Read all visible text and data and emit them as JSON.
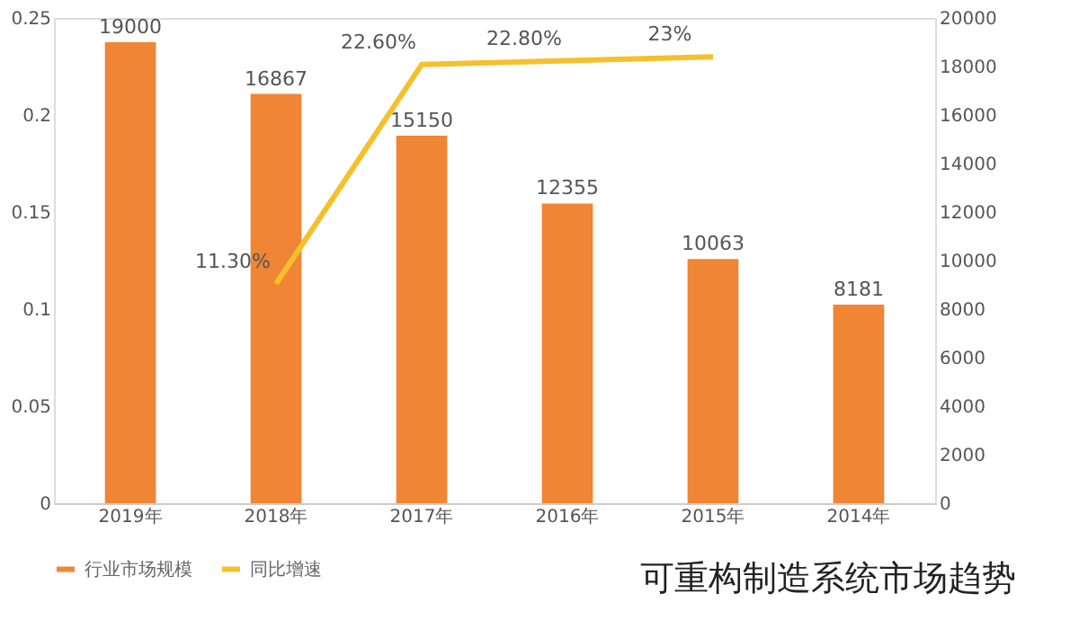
{
  "chart_data": {
    "type": "bar",
    "categories": [
      "2019年",
      "2018年",
      "2017年",
      "2016年",
      "2015年",
      "2014年"
    ],
    "series": [
      {
        "name": "行业市场规模",
        "axis": "y2",
        "color": "#ef8535",
        "values": [
          19000,
          16867,
          15150,
          12355,
          10063,
          8181
        ],
        "data_labels": true
      },
      {
        "name": "同比增速",
        "type": "line",
        "color": "#f5c02c",
        "values": [
          null,
          0.113,
          0.226,
          0.228,
          0.23,
          null
        ],
        "value_labels": [
          null,
          "11.30%",
          "22.60%",
          "22.80%",
          "23%",
          null
        ]
      }
    ],
    "ylim": [
      0,
      0.25
    ],
    "yticks": [
      0,
      0.05,
      0.1,
      0.15,
      0.2,
      0.25
    ],
    "y2lim": [
      0,
      20000
    ],
    "y2ticks": [
      0,
      2000,
      4000,
      6000,
      8000,
      10000,
      12000,
      14000,
      16000,
      18000,
      20000
    ],
    "grid": false,
    "legend": "bottom",
    "marker": "none",
    "annotations": [
      "可重构制造系统市场趋势"
    ]
  }
}
